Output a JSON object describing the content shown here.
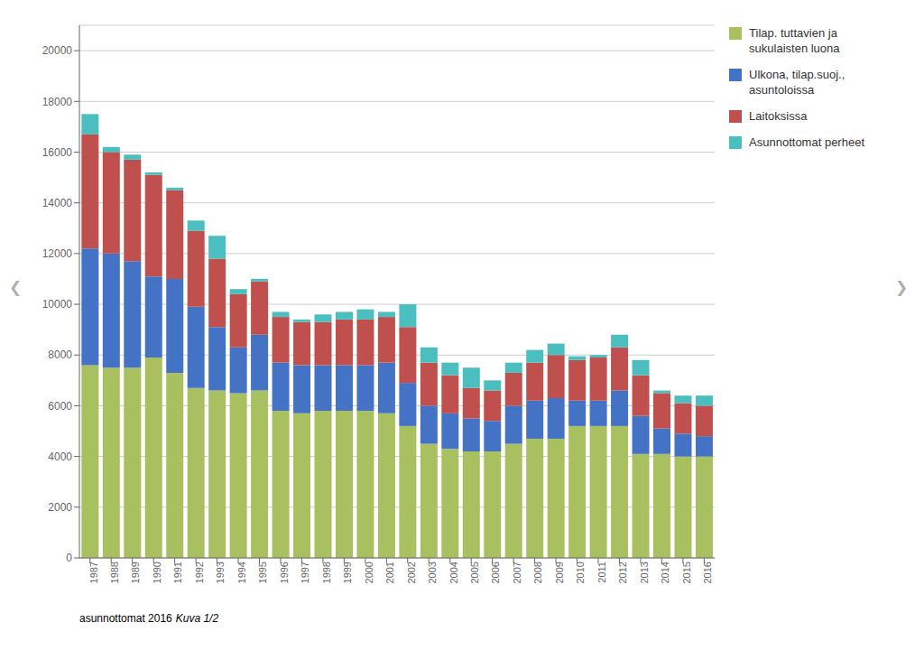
{
  "chart_data": {
    "type": "bar",
    "stacked": true,
    "categories": [
      "1987",
      "1988",
      "1989",
      "1990",
      "1991",
      "1992",
      "1993",
      "1994",
      "1995",
      "1996",
      "1997",
      "1998",
      "1999",
      "2000",
      "2001",
      "2002",
      "2003",
      "2004",
      "2005",
      "2006",
      "2007",
      "2008",
      "2009",
      "2010",
      "2011",
      "2012",
      "2013",
      "2014",
      "2015",
      "2016"
    ],
    "series": [
      {
        "name": "Tilap. tuttavien ja\nsukulaisten luona",
        "color": "#a8c060",
        "values": [
          7600,
          7500,
          7500,
          7900,
          7300,
          6700,
          6600,
          6500,
          6600,
          5800,
          5700,
          5800,
          5800,
          5800,
          5700,
          5200,
          4500,
          4300,
          4200,
          4200,
          4500,
          4700,
          4700,
          5200,
          5200,
          5200,
          4100,
          4100,
          4000,
          4000
        ]
      },
      {
        "name": "Ulkona, tilap.suoj.,\nasuntoloissa",
        "color": "#4472c4",
        "values": [
          4600,
          4500,
          4200,
          3200,
          3700,
          3200,
          2500,
          1800,
          2200,
          1900,
          1900,
          1800,
          1800,
          1800,
          2000,
          1700,
          1500,
          1400,
          1300,
          1200,
          1500,
          1500,
          1600,
          1000,
          1000,
          1400,
          1500,
          1000,
          900,
          800
        ]
      },
      {
        "name": "Laitoksissa",
        "color": "#c0504d",
        "values": [
          4500,
          4000,
          4000,
          4000,
          3500,
          3000,
          2700,
          2100,
          2100,
          1800,
          1700,
          1700,
          1800,
          1800,
          1800,
          2200,
          1700,
          1500,
          1200,
          1200,
          1300,
          1500,
          1700,
          1600,
          1700,
          1700,
          1600,
          1400,
          1200,
          1200
        ]
      },
      {
        "name": "Asunnottomat perheet",
        "color": "#4bbfbf",
        "values": [
          800,
          200,
          200,
          100,
          100,
          400,
          900,
          200,
          100,
          200,
          100,
          300,
          300,
          400,
          200,
          900,
          600,
          500,
          800,
          400,
          400,
          500,
          450,
          150,
          100,
          500,
          600,
          100,
          300,
          400
        ]
      }
    ],
    "ylim": [
      0,
      21000
    ],
    "yticks": [
      0,
      2000,
      4000,
      6000,
      8000,
      10000,
      12000,
      14000,
      16000,
      18000,
      20000
    ],
    "grid": true,
    "legend": "upper right",
    "annotations": [
      "asunnottomat 2016",
      "Kuva 1/2",
      "❮",
      "❯"
    ]
  }
}
